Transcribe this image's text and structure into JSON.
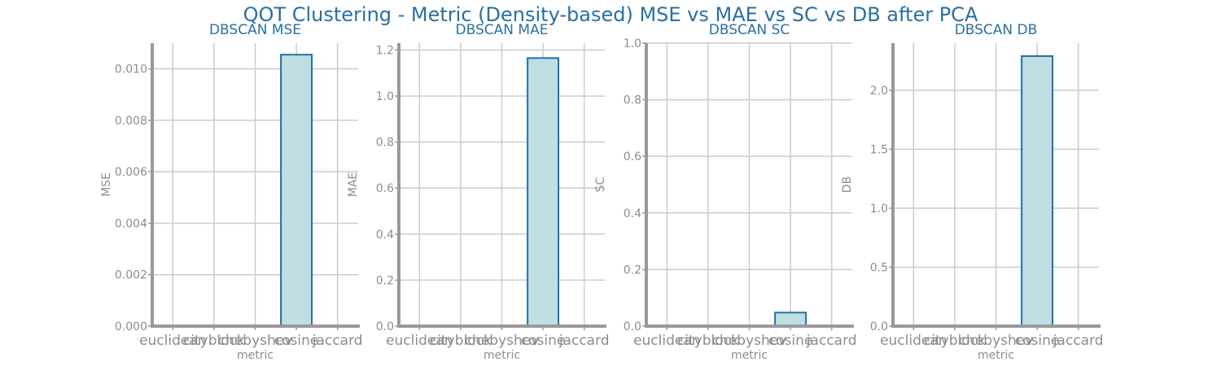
{
  "title": "QOT Clustering - Metric (Density-based) MSE vs MAE vs SC vs DB after PCA",
  "colors": {
    "title": "#2a6fa0",
    "bar_fill": "#bfdee2",
    "bar_edge": "#2171a6",
    "axis": "#999999",
    "grid": "#cccccc",
    "tick_label": "#8c8c8c"
  },
  "chart_data": [
    {
      "type": "bar",
      "title": "DBSCAN MSE",
      "xlabel": "metric",
      "ylabel": "MSE",
      "categories": [
        "euclidean",
        "cityblock",
        "chebyshev",
        "cosine",
        "jaccard"
      ],
      "values": [
        0,
        0,
        0,
        0.01055,
        0
      ],
      "ylim": [
        0,
        0.011
      ],
      "yticks": [
        "0.000",
        "0.002",
        "0.004",
        "0.006",
        "0.008",
        "0.010"
      ],
      "ytick_values": [
        0,
        0.002,
        0.004,
        0.006,
        0.008,
        0.01
      ],
      "grid": true
    },
    {
      "type": "bar",
      "title": "DBSCAN MAE",
      "xlabel": "metric",
      "ylabel": "MAE",
      "categories": [
        "euclidean",
        "cityblock",
        "chebyshev",
        "cosine",
        "jaccard"
      ],
      "values": [
        0,
        0,
        0,
        1.165,
        0
      ],
      "ylim": [
        0,
        1.23
      ],
      "yticks": [
        "0.0",
        "0.2",
        "0.4",
        "0.6",
        "0.8",
        "1.0",
        "1.2"
      ],
      "ytick_values": [
        0,
        0.2,
        0.4,
        0.6,
        0.8,
        1.0,
        1.2
      ],
      "grid": true
    },
    {
      "type": "bar",
      "title": "DBSCAN SC",
      "xlabel": "metric",
      "ylabel": "SC",
      "categories": [
        "euclidean",
        "cityblock",
        "chebyshev",
        "cosine",
        "jaccard"
      ],
      "values": [
        0,
        0,
        0,
        0.048,
        0
      ],
      "ylim": [
        0,
        1.0
      ],
      "yticks": [
        "0.0",
        "0.2",
        "0.4",
        "0.6",
        "0.8",
        "1.0"
      ],
      "ytick_values": [
        0,
        0.2,
        0.4,
        0.6,
        0.8,
        1.0
      ],
      "grid": true
    },
    {
      "type": "bar",
      "title": "DBSCAN DB",
      "xlabel": "metric",
      "ylabel": "DB",
      "categories": [
        "euclidean",
        "cityblock",
        "chebyshev",
        "cosine",
        "jaccard"
      ],
      "values": [
        0,
        0,
        0,
        2.29,
        0
      ],
      "ylim": [
        0,
        2.4
      ],
      "yticks": [
        "0.0",
        "0.5",
        "1.0",
        "1.5",
        "2.0"
      ],
      "ytick_values": [
        0,
        0.5,
        1.0,
        1.5,
        2.0
      ],
      "grid": true
    }
  ]
}
